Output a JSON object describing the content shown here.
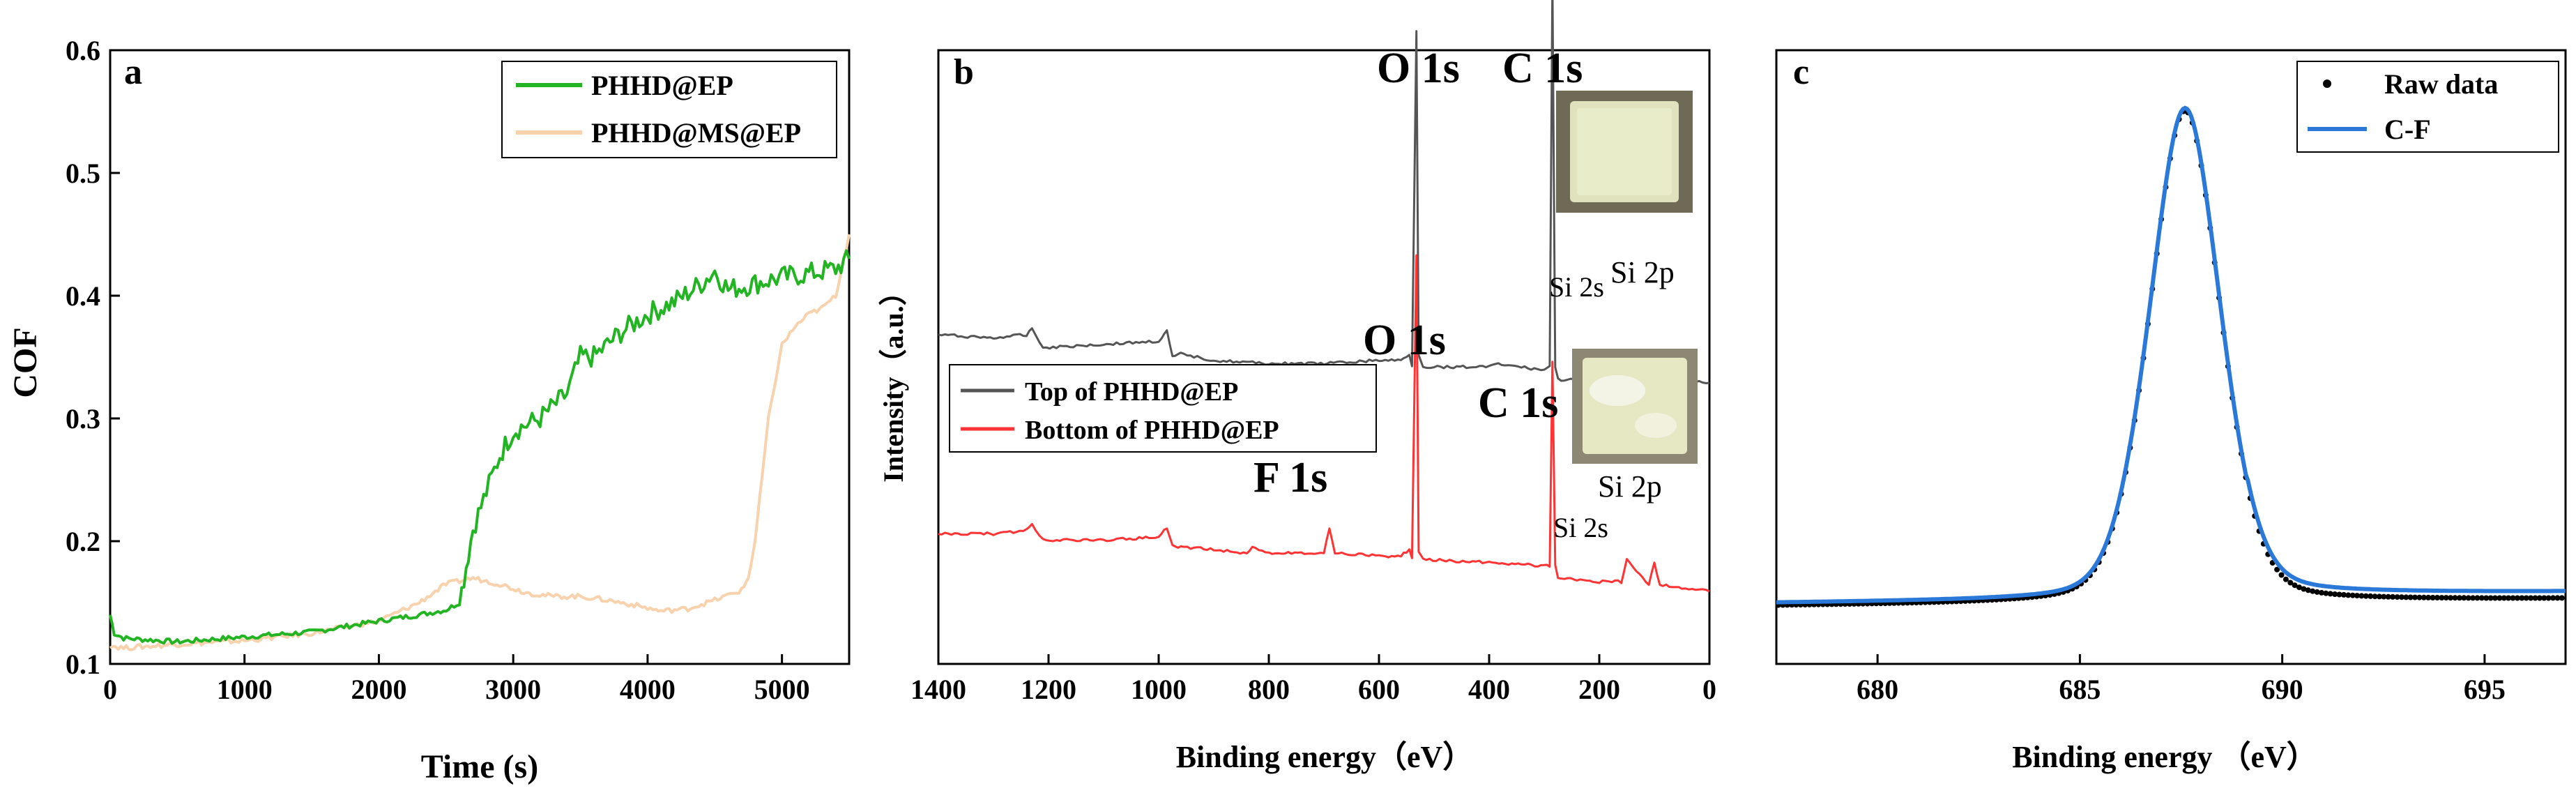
{
  "chart_data": [
    {
      "panel": "a",
      "type": "line",
      "xlabel": "Time (s)",
      "ylabel": "COF",
      "xlim": [
        0,
        5500
      ],
      "ylim": [
        0.1,
        0.6
      ],
      "xticks": [
        "0",
        "1000",
        "2000",
        "3000",
        "4000",
        "5000"
      ],
      "yticks": [
        "0.1",
        "0.2",
        "0.3",
        "0.4",
        "0.5",
        "0.6"
      ],
      "legend": [
        "PHHD@EP",
        "PHHD@MS@EP"
      ],
      "legend_position": "top-right",
      "series": [
        {
          "name": "PHHD@EP",
          "color": "#22b422",
          "x": [
            0,
            30,
            100,
            500,
            1000,
            1500,
            2000,
            2300,
            2500,
            2600,
            2650,
            2700,
            2800,
            2900,
            3000,
            3200,
            3400,
            3500,
            3600,
            3800,
            4000,
            4200,
            4400,
            4500,
            4600,
            4800,
            5000,
            5200,
            5400,
            5500
          ],
          "y": [
            0.14,
            0.125,
            0.121,
            0.118,
            0.122,
            0.126,
            0.135,
            0.14,
            0.144,
            0.15,
            0.18,
            0.21,
            0.24,
            0.27,
            0.29,
            0.3,
            0.32,
            0.35,
            0.35,
            0.37,
            0.385,
            0.395,
            0.41,
            0.42,
            0.405,
            0.41,
            0.415,
            0.418,
            0.422,
            0.43
          ]
        },
        {
          "name": "PHHD@MS@EP",
          "color": "#f7d2ad",
          "x": [
            0,
            100,
            500,
            1000,
            1500,
            2000,
            2300,
            2500,
            2700,
            2900,
            3100,
            3300,
            3500,
            3700,
            3900,
            4100,
            4300,
            4500,
            4700,
            4750,
            4800,
            4850,
            4900,
            5000,
            5100,
            5200,
            5300,
            5400,
            5500
          ],
          "y": [
            0.115,
            0.113,
            0.116,
            0.119,
            0.125,
            0.135,
            0.15,
            0.165,
            0.17,
            0.165,
            0.158,
            0.155,
            0.155,
            0.152,
            0.148,
            0.143,
            0.145,
            0.152,
            0.16,
            0.17,
            0.2,
            0.25,
            0.3,
            0.36,
            0.375,
            0.385,
            0.39,
            0.4,
            0.45
          ]
        }
      ]
    },
    {
      "panel": "b",
      "type": "line",
      "xlabel": "Binding energy（eV）",
      "ylabel": "Intensity（a.u.）",
      "xlim": [
        1400,
        0
      ],
      "reversed_x": true,
      "xticks": [
        "1400",
        "1200",
        "1000",
        "800",
        "600",
        "400",
        "200",
        "0"
      ],
      "legend": [
        "Top of PHHD@EP",
        "Bottom of PHHD@EP"
      ],
      "legend_position": "middle-left",
      "series": [
        {
          "name": "Top of PHHD@EP",
          "color": "#555555",
          "x": [
            1400,
            1300,
            1240,
            1230,
            1210,
            1100,
            1000,
            985,
            975,
            960,
            900,
            800,
            700,
            600,
            560,
            545,
            540,
            532,
            528,
            520,
            500,
            400,
            395,
            300,
            290,
            285,
            280,
            275,
            200,
            160,
            150,
            110,
            100,
            90,
            50,
            0
          ],
          "y": [
            0.7,
            0.69,
            0.7,
            0.72,
            0.66,
            0.67,
            0.68,
            0.71,
            0.63,
            0.64,
            0.62,
            0.61,
            0.61,
            0.62,
            0.62,
            0.64,
            0.6,
            1.65,
            0.64,
            0.6,
            0.6,
            0.6,
            0.61,
            0.59,
            0.6,
            1.8,
            0.6,
            0.56,
            0.56,
            0.56,
            0.63,
            0.56,
            0.64,
            0.56,
            0.56,
            0.55
          ]
        },
        {
          "name": "Bottom of PHHD@EP",
          "color": "#ff3333",
          "x": [
            1400,
            1300,
            1240,
            1230,
            1210,
            1100,
            1000,
            985,
            975,
            960,
            900,
            840,
            830,
            800,
            700,
            690,
            680,
            600,
            560,
            545,
            540,
            532,
            528,
            520,
            400,
            300,
            290,
            285,
            280,
            275,
            200,
            160,
            150,
            110,
            100,
            90,
            50,
            0
          ],
          "y": [
            0.08,
            0.08,
            0.09,
            0.11,
            0.06,
            0.06,
            0.07,
            0.1,
            0.04,
            0.04,
            0.03,
            0.02,
            0.04,
            0.02,
            0.02,
            0.1,
            0.02,
            0.01,
            0.01,
            0.03,
            0.0,
            0.95,
            0.02,
            0.0,
            -0.01,
            -0.02,
            -0.02,
            0.62,
            -0.02,
            -0.06,
            -0.07,
            -0.07,
            0.0,
            -0.08,
            -0.01,
            -0.08,
            -0.09,
            -0.1
          ]
        }
      ],
      "annotations": [
        "O 1s",
        "C 1s",
        "Si 2s",
        "Si 2p",
        "O 1s",
        "C 1s",
        "F 1s",
        "Si 2p",
        "Si 2s"
      ],
      "insets": [
        "sample top photo",
        "sample bottom photo"
      ]
    },
    {
      "panel": "c",
      "type": "line",
      "xlabel": "Binding energy （eV）",
      "ylabel": "",
      "xlim": [
        677.5,
        697
      ],
      "xticks": [
        "680",
        "685",
        "690",
        "695"
      ],
      "legend": [
        "Raw data",
        "C-F"
      ],
      "legend_position": "top-right",
      "peak_center": 687.6,
      "series": [
        {
          "name": "Raw data",
          "marker": "dots",
          "color": "#000000"
        },
        {
          "name": "C-F",
          "color": "#2a78d8"
        }
      ]
    }
  ]
}
